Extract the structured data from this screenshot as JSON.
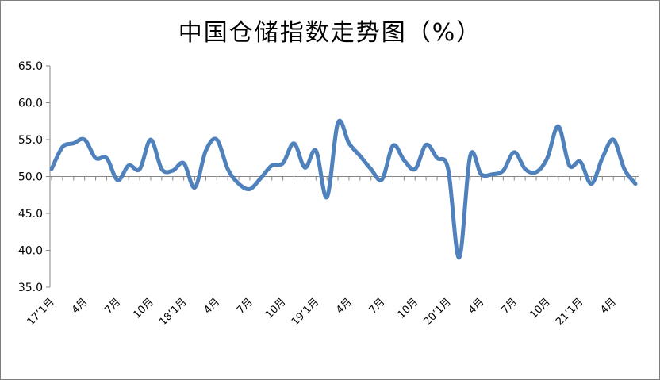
{
  "chart_data": {
    "type": "line",
    "title": "中国仓储指数走势图（%）",
    "xlabel": "",
    "ylabel": "",
    "ylim": [
      35.0,
      65.0
    ],
    "y_ticks": [
      "35.0",
      "40.0",
      "45.0",
      "50.0",
      "55.0",
      "60.0",
      "65.0"
    ],
    "baseline": 50.0,
    "line_color": "#4f81bd",
    "x_tick_labels": [
      {
        "index": 0,
        "label": "17’1月"
      },
      {
        "index": 3,
        "label": "4月"
      },
      {
        "index": 6,
        "label": "7月"
      },
      {
        "index": 9,
        "label": "10月"
      },
      {
        "index": 12,
        "label": "18’1月"
      },
      {
        "index": 15,
        "label": "4月"
      },
      {
        "index": 18,
        "label": "7月"
      },
      {
        "index": 21,
        "label": "10月"
      },
      {
        "index": 24,
        "label": "19’1月"
      },
      {
        "index": 27,
        "label": "4月"
      },
      {
        "index": 30,
        "label": "7月"
      },
      {
        "index": 33,
        "label": "10月"
      },
      {
        "index": 36,
        "label": "20’1月"
      },
      {
        "index": 39,
        "label": "4月"
      },
      {
        "index": 42,
        "label": "7月"
      },
      {
        "index": 45,
        "label": "10月"
      },
      {
        "index": 48,
        "label": "21’1月"
      },
      {
        "index": 51,
        "label": "4月"
      }
    ],
    "categories": [
      "2017-01",
      "2017-02",
      "2017-03",
      "2017-04",
      "2017-05",
      "2017-06",
      "2017-07",
      "2017-08",
      "2017-09",
      "2017-10",
      "2017-11",
      "2017-12",
      "2018-01",
      "2018-02",
      "2018-03",
      "2018-04",
      "2018-05",
      "2018-06",
      "2018-07",
      "2018-08",
      "2018-09",
      "2018-10",
      "2018-11",
      "2018-12",
      "2019-01",
      "2019-02",
      "2019-03",
      "2019-04",
      "2019-05",
      "2019-06",
      "2019-07",
      "2019-08",
      "2019-09",
      "2019-10",
      "2019-11",
      "2019-12",
      "2020-01",
      "2020-02",
      "2020-03",
      "2020-04",
      "2020-05",
      "2020-06",
      "2020-07",
      "2020-08",
      "2020-09",
      "2020-10",
      "2020-11",
      "2020-12",
      "2021-01",
      "2021-02",
      "2021-03",
      "2021-04",
      "2021-05",
      "2021-06"
    ],
    "series": [
      {
        "values": [
          51.0,
          54.0,
          54.5,
          55.0,
          52.5,
          52.5,
          49.5,
          51.5,
          51.0,
          55.0,
          51.0,
          50.8,
          51.8,
          48.5,
          53.5,
          55.0,
          51.0,
          49.0,
          48.3,
          49.8,
          51.5,
          51.8,
          54.5,
          51.2,
          53.5,
          47.2,
          57.3,
          54.5,
          52.8,
          51.0,
          49.6,
          54.2,
          52.2,
          51.0,
          54.3,
          52.5,
          51.0,
          39.0,
          52.8,
          50.3,
          50.3,
          50.8,
          53.3,
          51.0,
          50.6,
          52.5,
          56.8,
          51.5,
          52.0,
          49.0,
          52.5,
          55.0,
          51.0,
          49.0
        ]
      }
    ]
  }
}
